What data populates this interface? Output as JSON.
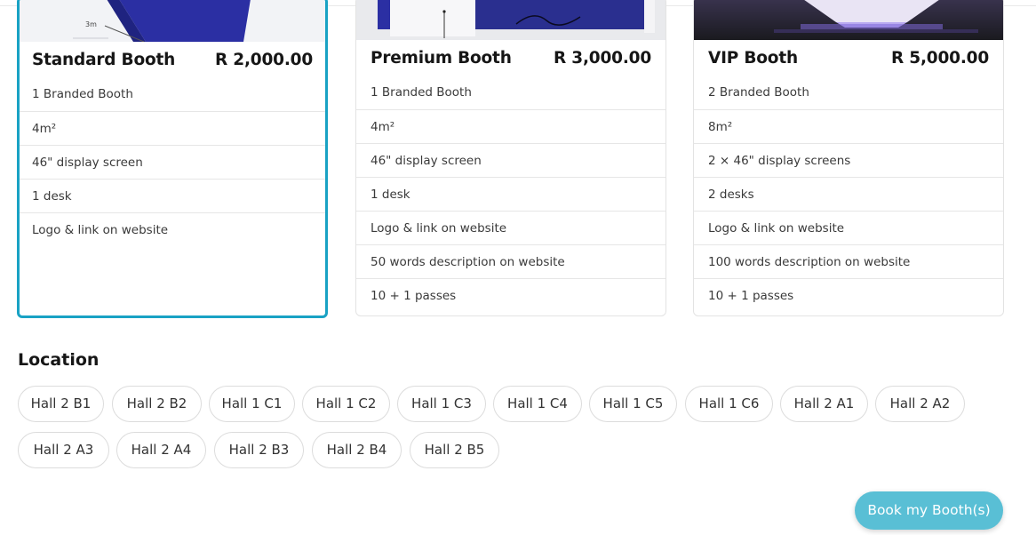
{
  "booths": [
    {
      "name": "Standard Booth",
      "price": "R 2,000.00",
      "image_text": "3m",
      "selected": true,
      "features": [
        "1 Branded Booth",
        "4m²",
        "46\" display screen",
        "1 desk",
        "Logo & link on website"
      ]
    },
    {
      "name": "Premium Booth",
      "price": "R 3,000.00",
      "selected": false,
      "features": [
        "1 Branded Booth",
        "4m²",
        "46\" display screen",
        "1 desk",
        "Logo & link on website",
        "50 words description on website",
        "10 + 1 passes"
      ]
    },
    {
      "name": "VIP Booth",
      "price": "R 5,000.00",
      "selected": false,
      "features": [
        "2 Branded Booth",
        "8m²",
        "2 × 46\" display screens",
        "2 desks",
        "Logo & link on website",
        "100 words description on website",
        "10 + 1 passes"
      ]
    }
  ],
  "location": {
    "title": "Location",
    "halls": [
      "Hall 2 B1",
      "Hall 2 B2",
      "Hall 1 C1",
      "Hall 1 C2",
      "Hall 1 C3",
      "Hall 1 C4",
      "Hall 1 C5",
      "Hall 1 C6",
      "Hall 2 A1",
      "Hall 2 A2",
      "Hall 2 A3",
      "Hall 2 A4",
      "Hall 2 B3",
      "Hall 2 B4",
      "Hall 2 B5"
    ]
  },
  "book_button": "Book my Booth(s)",
  "colors": {
    "accent": "#19a2c4",
    "button": "#59bfd5",
    "booth_blue": "#2b2fa3"
  }
}
